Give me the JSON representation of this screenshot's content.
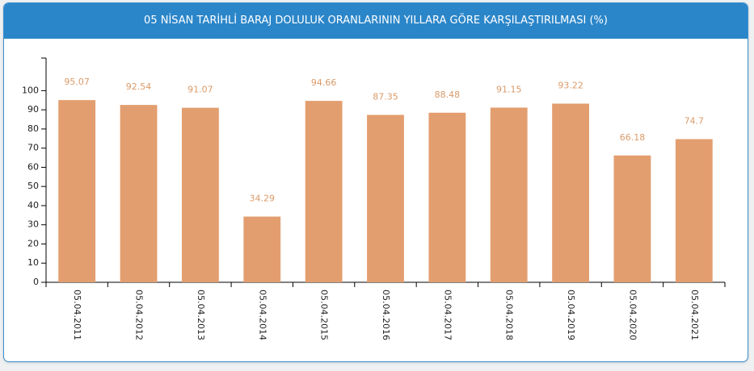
{
  "chart_data": {
    "type": "bar",
    "title": "05 NİSAN TARİHLİ BARAJ DOLULUK ORANLARININ YILLARA GÖRE KARŞILAŞTIRILMASI (%)",
    "categories": [
      "05.04.2011",
      "05.04.2012",
      "05.04.2013",
      "05.04.2014",
      "05.04.2015",
      "05.04.2016",
      "05.04.2017",
      "05.04.2018",
      "05.04.2019",
      "05.04.2020",
      "05.04.2021"
    ],
    "values": [
      95.07,
      92.54,
      91.07,
      34.29,
      94.66,
      87.35,
      88.48,
      91.15,
      93.22,
      66.18,
      74.7
    ],
    "color": "#e39e6f",
    "ylim": [
      0,
      117
    ],
    "yticks": [
      0,
      10,
      20,
      30,
      40,
      50,
      60,
      70,
      80,
      90,
      100
    ],
    "grid": false
  }
}
